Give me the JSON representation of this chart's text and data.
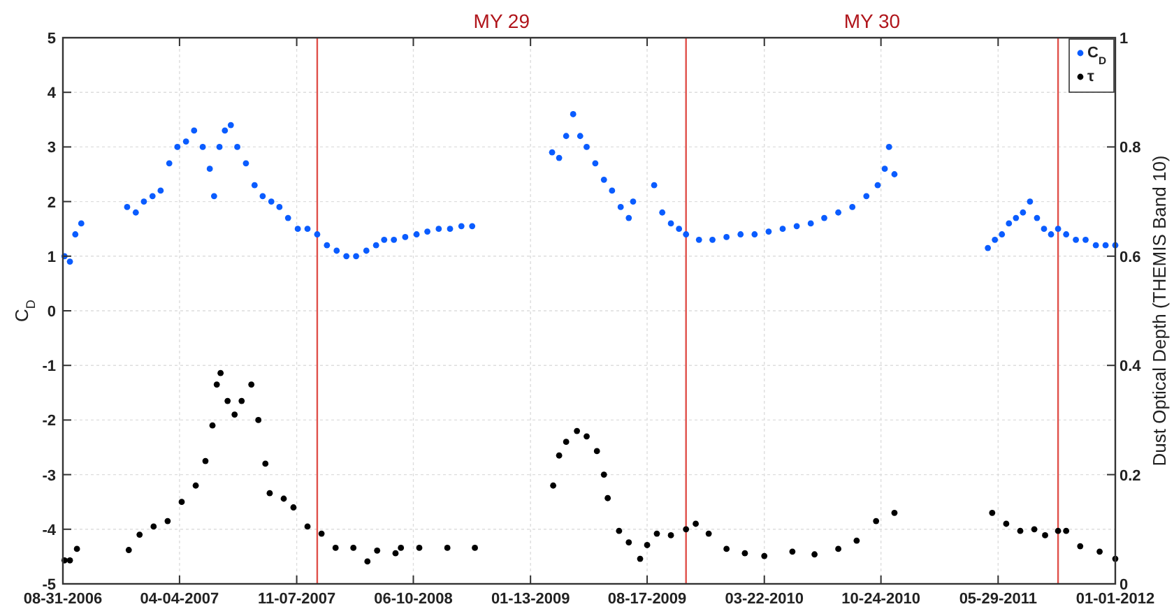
{
  "chart_data": {
    "type": "scatter",
    "ylabel": "C$_{D}$",
    "y2label": "Dust Optical Depth (THEMIS Band 10)",
    "xlim": [
      "2006-08-31",
      "2012-01-01"
    ],
    "xticks": [
      {
        "value": "2006-08-31",
        "label": "08-31-2006"
      },
      {
        "value": "2007-04-04",
        "label": "04-04-2007"
      },
      {
        "value": "2007-11-07",
        "label": "11-07-2007"
      },
      {
        "value": "2008-06-10",
        "label": "06-10-2008"
      },
      {
        "value": "2009-01-13",
        "label": "01-13-2009"
      },
      {
        "value": "2009-08-17",
        "label": "08-17-2009"
      },
      {
        "value": "2010-03-22",
        "label": "03-22-2010"
      },
      {
        "value": "2010-10-24",
        "label": "10-24-2010"
      },
      {
        "value": "2011-05-29",
        "label": "05-29-2011"
      },
      {
        "value": "2012-01-01",
        "label": "01-01-2012"
      }
    ],
    "ylim": [
      -5,
      5
    ],
    "yticks": [
      -5,
      -4,
      -3,
      -2,
      -1,
      0,
      1,
      2,
      3,
      4,
      5
    ],
    "y2lim": [
      0,
      1
    ],
    "y2ticks": [
      0,
      0.2,
      0.4,
      0.6,
      0.8,
      1
    ],
    "grid": true,
    "legend": "top right",
    "marker": "circle",
    "ref_lines": [
      {
        "axis": "x",
        "value": "2007-12-15",
        "color": "#e0504a"
      },
      {
        "axis": "x",
        "value": "2009-10-28",
        "color": "#e0504a"
      },
      {
        "axis": "x",
        "value": "2011-09-17",
        "color": "#e0504a"
      }
    ],
    "annotations": [
      "MY 29",
      "MY 30"
    ],
    "series": [
      {
        "name": "C$_{D}$",
        "color": "#0a5cff",
        "x": [
          "2006-09-03",
          "2006-09-13",
          "2006-09-23",
          "2006-10-04",
          "2006-12-28",
          "2007-01-13",
          "2007-01-28",
          "2007-02-13",
          "2007-02-28",
          "2007-03-16",
          "2007-03-31",
          "2007-04-16",
          "2007-05-01",
          "2007-05-17",
          "2007-05-30",
          "2007-06-07",
          "2007-06-17",
          "2007-06-27",
          "2007-07-08",
          "2007-07-20",
          "2007-08-05",
          "2007-08-21",
          "2007-09-05",
          "2007-09-21",
          "2007-10-06",
          "2007-10-22",
          "2007-11-09",
          "2007-11-27",
          "2007-12-15",
          "2008-01-02",
          "2008-01-20",
          "2008-02-07",
          "2008-02-25",
          "2008-03-15",
          "2008-04-02",
          "2008-04-17",
          "2008-05-05",
          "2008-05-26",
          "2008-06-16",
          "2008-07-06",
          "2008-07-27",
          "2008-08-17",
          "2008-09-07",
          "2008-09-27",
          "2009-02-22",
          "2009-03-07",
          "2009-03-20",
          "2009-04-02",
          "2009-04-15",
          "2009-04-27",
          "2009-05-13",
          "2009-05-29",
          "2009-06-13",
          "2009-06-29",
          "2009-07-14",
          "2009-07-22",
          "2009-08-30",
          "2009-09-14",
          "2009-09-30",
          "2009-10-15",
          "2009-10-28",
          "2009-11-21",
          "2009-12-16",
          "2010-01-11",
          "2010-02-06",
          "2010-03-04",
          "2010-03-30",
          "2010-04-25",
          "2010-05-21",
          "2010-06-16",
          "2010-07-11",
          "2010-08-06",
          "2010-09-01",
          "2010-09-27",
          "2010-10-18",
          "2010-10-31",
          "2010-11-08",
          "2010-11-18",
          "2011-05-10",
          "2011-05-23",
          "2011-06-05",
          "2011-06-18",
          "2011-07-01",
          "2011-07-14",
          "2011-07-27",
          "2011-08-09",
          "2011-08-22",
          "2011-09-04",
          "2011-09-17",
          "2011-10-02",
          "2011-10-20",
          "2011-11-07",
          "2011-11-26",
          "2011-12-14",
          "2012-01-01"
        ],
        "values": [
          1.0,
          0.9,
          1.4,
          1.6,
          1.9,
          1.8,
          2.0,
          2.1,
          2.2,
          2.7,
          3.0,
          3.1,
          3.3,
          3.0,
          2.6,
          2.1,
          3.0,
          3.3,
          3.4,
          3.0,
          2.7,
          2.3,
          2.1,
          2.0,
          1.9,
          1.7,
          1.5,
          1.5,
          1.4,
          1.2,
          1.1,
          1.0,
          1.0,
          1.1,
          1.2,
          1.3,
          1.3,
          1.35,
          1.4,
          1.45,
          1.5,
          1.5,
          1.55,
          1.55,
          2.9,
          2.8,
          3.2,
          3.6,
          3.2,
          3.0,
          2.7,
          2.4,
          2.2,
          1.9,
          1.7,
          2.0,
          2.3,
          1.8,
          1.6,
          1.5,
          1.4,
          1.3,
          1.3,
          1.35,
          1.4,
          1.4,
          1.45,
          1.5,
          1.55,
          1.6,
          1.7,
          1.8,
          1.9,
          2.1,
          2.3,
          2.6,
          3.0,
          2.5,
          1.15,
          1.3,
          1.4,
          1.6,
          1.7,
          1.8,
          2.0,
          1.7,
          1.5,
          1.4,
          1.5,
          1.4,
          1.3,
          1.3,
          1.2,
          1.2,
          1.2
        ]
      },
      {
        "name": "τ",
        "color": "#000000",
        "axis": "y2",
        "x": [
          "2006-09-03",
          "2006-09-13",
          "2006-09-26",
          "2006-12-31",
          "2007-01-20",
          "2007-02-15",
          "2007-03-13",
          "2007-04-08",
          "2007-05-04",
          "2007-05-22",
          "2007-06-04",
          "2007-06-12",
          "2007-06-19",
          "2007-07-02",
          "2007-07-15",
          "2007-07-28",
          "2007-08-15",
          "2007-08-28",
          "2007-09-10",
          "2007-09-18",
          "2007-10-14",
          "2007-11-01",
          "2007-11-27",
          "2007-12-23",
          "2008-01-18",
          "2008-02-20",
          "2008-03-17",
          "2008-04-04",
          "2008-05-08",
          "2008-05-18",
          "2008-06-21",
          "2008-08-12",
          "2008-10-02",
          "2009-02-24",
          "2009-03-07",
          "2009-03-20",
          "2009-04-09",
          "2009-04-27",
          "2009-05-16",
          "2009-05-29",
          "2009-06-05",
          "2009-06-26",
          "2009-07-14",
          "2009-08-04",
          "2009-08-17",
          "2009-09-04",
          "2009-09-30",
          "2009-10-28",
          "2009-11-15",
          "2009-12-09",
          "2010-01-11",
          "2010-02-14",
          "2010-03-22",
          "2010-05-13",
          "2010-06-23",
          "2010-08-06",
          "2010-09-09",
          "2010-10-15",
          "2010-11-18",
          "2011-05-18",
          "2011-06-13",
          "2011-07-09",
          "2011-08-04",
          "2011-08-24",
          "2011-09-17",
          "2011-10-02",
          "2011-10-28",
          "2011-12-03",
          "2012-01-01"
        ],
        "values": [
          0.043,
          0.043,
          0.064,
          0.062,
          0.09,
          0.105,
          0.115,
          0.15,
          0.18,
          0.225,
          0.29,
          0.365,
          0.386,
          0.335,
          0.31,
          0.335,
          0.365,
          0.3,
          0.22,
          0.166,
          0.156,
          0.14,
          0.105,
          0.092,
          0.066,
          0.066,
          0.041,
          0.061,
          0.056,
          0.066,
          0.066,
          0.066,
          0.066,
          0.18,
          0.235,
          0.26,
          0.28,
          0.27,
          0.243,
          0.2,
          0.157,
          0.097,
          0.076,
          0.046,
          0.071,
          0.092,
          0.089,
          0.1,
          0.11,
          0.092,
          0.064,
          0.056,
          0.051,
          0.059,
          0.054,
          0.064,
          0.079,
          0.115,
          0.13,
          0.13,
          0.11,
          0.097,
          0.1,
          0.089,
          0.097,
          0.097,
          0.069,
          0.059,
          0.046
        ]
      }
    ]
  }
}
